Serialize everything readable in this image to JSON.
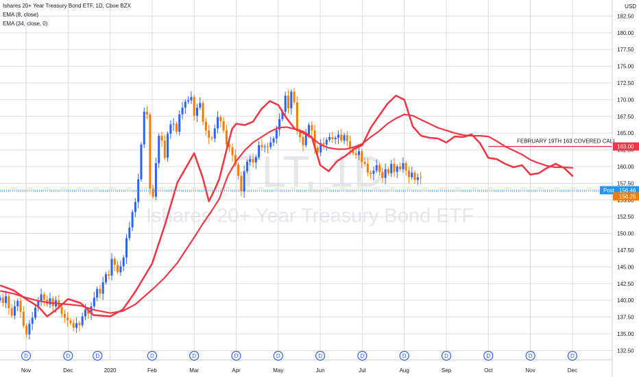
{
  "header": {
    "title": "Ishares 20+ Year Treasury Bond ETF, 1D, Cboe BZX",
    "ema_fast_label": "EMA (8, close)",
    "ema_slow_label": "EMA (34, close, 0)"
  },
  "watermark": {
    "symbol": "TLT, 1D",
    "name": "Ishares 20+ Year Treasury Bond ETF"
  },
  "colors": {
    "up": "#2962ff",
    "down": "#f57c00",
    "ema": "#f23645",
    "grid": "#d9dbe2",
    "post_tag": "#2196f3"
  },
  "chart_data": {
    "type": "candlestick",
    "title": "Ishares 20+ Year Treasury Bond ETF, 1D, Cboe BZX",
    "currency": "USD",
    "y_ticks": [
      132.5,
      135,
      137.5,
      140,
      142.5,
      145,
      147.5,
      150,
      152.5,
      155,
      157.5,
      160,
      162.5,
      165,
      167.5,
      170,
      172.5,
      175,
      177.5,
      180,
      182.5
    ],
    "y_ticks_labels": [
      "132.50",
      "135.00",
      "137.50",
      "140.00",
      "142.50",
      "145.00",
      "147.50",
      "150.00",
      "152.50",
      "155.00",
      "157.50",
      "160.00",
      "162.50",
      "165.00",
      "167.50",
      "170.00",
      "172.50",
      "175.00",
      "177.50",
      "180.00",
      "182.50"
    ],
    "ylim": [
      131.1,
      184.9
    ],
    "x_labels": [
      "Nov",
      "Dec",
      "2020",
      "Feb",
      "Mar",
      "Apr",
      "May",
      "Jun",
      "Jul",
      "Aug",
      "Sep",
      "Oct",
      "Nov",
      "Dec"
    ],
    "x_label_month_index": [
      0,
      1,
      2,
      3,
      4,
      5,
      6,
      7,
      8,
      9,
      10,
      11,
      12,
      13
    ],
    "dividend_marker_label": "D",
    "dividend_month_index": [
      0,
      1,
      1.7,
      3,
      4,
      5,
      6,
      7,
      8,
      9,
      10,
      11,
      12,
      13
    ],
    "series": [
      {
        "name": "EMA (8, close)",
        "month_index": [
          -0.6,
          -0.3,
          0,
          0.3,
          0.5,
          0.7,
          1,
          1.3,
          1.6,
          2,
          2.3,
          2.6,
          3,
          3.3,
          3.6,
          4,
          4.2,
          4.35,
          4.5,
          4.6,
          4.75,
          4.9,
          5,
          5.2,
          5.4,
          5.6,
          5.8,
          6,
          6.2,
          6.4,
          6.6,
          6.8,
          7,
          7.2,
          7.4,
          7.6,
          7.8,
          8,
          8.2,
          8.4,
          8.6,
          8.8,
          9,
          9.2,
          9.4,
          9.6,
          9.8,
          10,
          10.2,
          10.4,
          10.6,
          10.8,
          11,
          11.2,
          11.4,
          11.6,
          11.8,
          12,
          12.2,
          12.4,
          12.6,
          12.8,
          13
        ],
        "values": [
          142.2,
          141.5,
          140.2,
          139,
          137.6,
          138.5,
          140.2,
          139.6,
          137.8,
          137.6,
          138.6,
          141.3,
          145.5,
          151.2,
          157.6,
          162.0,
          158.4,
          154.8,
          156.7,
          158.2,
          162.0,
          165.6,
          166.4,
          166.2,
          166.7,
          168.6,
          169.8,
          169.2,
          167.2,
          165.6,
          165.2,
          164.4,
          160.2,
          159.3,
          160.8,
          161.6,
          162.6,
          163.2,
          165.8,
          167.6,
          169.4,
          170.6,
          170.0,
          166.0,
          164.6,
          164.3,
          164.2,
          163.6,
          164.5,
          164.4,
          164.8,
          163.5,
          161.3,
          161.1,
          160.4,
          159.9,
          160.2,
          158.8,
          159.0,
          159.8,
          160.4,
          159.8,
          158.6
        ]
      },
      {
        "name": "EMA (34, close, 0)",
        "month_index": [
          -0.6,
          -0.3,
          0,
          0.3,
          0.6,
          1,
          1.3,
          1.6,
          2,
          2.3,
          2.6,
          3,
          3.3,
          3.6,
          4,
          4.2,
          4.4,
          4.6,
          4.8,
          5,
          5.2,
          5.4,
          5.6,
          5.8,
          6,
          6.2,
          6.4,
          6.6,
          6.8,
          7,
          7.2,
          7.4,
          7.6,
          7.8,
          8,
          8.2,
          8.4,
          8.6,
          8.8,
          9,
          9.2,
          9.4,
          9.6,
          9.8,
          10,
          10.2,
          10.4,
          10.6,
          10.8,
          11,
          11.2,
          11.4,
          11.6,
          11.8,
          12,
          12.2,
          12.4,
          12.6,
          12.8,
          13
        ],
        "values": [
          141.4,
          141.0,
          140.4,
          139.9,
          139.6,
          139.4,
          139.2,
          138.6,
          138.1,
          138.4,
          139.4,
          141.6,
          143.4,
          145.6,
          149.4,
          151.4,
          153.2,
          155.2,
          158.6,
          160.8,
          162.4,
          163.6,
          164.4,
          165.2,
          165.8,
          165.9,
          165.6,
          165.0,
          164.3,
          163.3,
          162.8,
          162.6,
          162.6,
          162.9,
          163.4,
          164.4,
          165.3,
          166.4,
          167.2,
          167.8,
          167.6,
          167.0,
          166.4,
          165.8,
          165.4,
          165.0,
          164.7,
          164.6,
          164.6,
          164.5,
          163.8,
          163.0,
          162.4,
          161.8,
          161.0,
          160.5,
          160.1,
          159.9,
          159.9,
          159.8
        ]
      }
    ],
    "horizontal_line": {
      "value": 163.0,
      "label": "FEBRUARY 19TH 163 COVERED CALL",
      "tag": "163.00",
      "start_month_index": 11.0
    },
    "price_tags": [
      {
        "label": "Post",
        "value_text": "156.46",
        "value": 156.46
      },
      {
        "label": "",
        "value_text": "156.25",
        "value": 156.25
      }
    ],
    "candles": {
      "month_index": [
        -0.62,
        -0.55,
        -0.48,
        -0.41,
        -0.34,
        -0.27,
        -0.2,
        -0.13,
        -0.06,
        0.01,
        0.08,
        0.15,
        0.22,
        0.29,
        0.36,
        0.43,
        0.5,
        0.57,
        0.64,
        0.71,
        0.78,
        0.85,
        0.92,
        0.99,
        1.06,
        1.13,
        1.2,
        1.27,
        1.34,
        1.41,
        1.48,
        1.55,
        1.62,
        1.69,
        1.76,
        1.83,
        1.9,
        1.97,
        2.04,
        2.11,
        2.18,
        2.25,
        2.32,
        2.39,
        2.46,
        2.53,
        2.6,
        2.67,
        2.74,
        2.81,
        2.88,
        2.95,
        3.02,
        3.09,
        3.16,
        3.23,
        3.3,
        3.37,
        3.44,
        3.51,
        3.58,
        3.65,
        3.72,
        3.79,
        3.86,
        3.93,
        4.0,
        4.07,
        4.14,
        4.21,
        4.28,
        4.35,
        4.42,
        4.49,
        4.56,
        4.63,
        4.7,
        4.77,
        4.84,
        4.91,
        4.98,
        5.05,
        5.12,
        5.19,
        5.26,
        5.33,
        5.4,
        5.47,
        5.54,
        5.61,
        5.68,
        5.75,
        5.82,
        5.89,
        5.96,
        6.03,
        6.1,
        6.17,
        6.24,
        6.31,
        6.38,
        6.45,
        6.52,
        6.59,
        6.66,
        6.73,
        6.8,
        6.87,
        6.94,
        7.01,
        7.08,
        7.15,
        7.22,
        7.29,
        7.36,
        7.43,
        7.5,
        7.57,
        7.64,
        7.71,
        7.78,
        7.85,
        7.92,
        7.99,
        8.06,
        8.13,
        8.2,
        8.27,
        8.34,
        8.41,
        8.48,
        8.55,
        8.62,
        8.69,
        8.76,
        8.83,
        8.9,
        8.97,
        9.04,
        9.11,
        9.18,
        9.25,
        9.32,
        9.39,
        9.46,
        9.53,
        9.6,
        9.67,
        9.74,
        9.81,
        9.88,
        9.95,
        10.02,
        10.09,
        10.16,
        10.23,
        10.3,
        10.37,
        10.44,
        10.51,
        10.58,
        10.65,
        10.72,
        10.79,
        10.86,
        10.93,
        11.0,
        11.07,
        11.14,
        11.21,
        11.28,
        11.35,
        11.42,
        11.49,
        11.56,
        11.63,
        11.7,
        11.77,
        11.84,
        11.91,
        11.98,
        12.05,
        12.12,
        12.19,
        12.26,
        12.33,
        12.4,
        12.47,
        12.54,
        12.61,
        12.68,
        12.75,
        12.82,
        12.89,
        12.96,
        13.03
      ],
      "close": [
        140.4,
        139.6,
        140.6,
        138.8,
        137.7,
        139.1,
        139.9,
        138.3,
        136.2,
        134.9,
        136.5,
        137.4,
        138.9,
        139.9,
        140.9,
        140.1,
        139.4,
        140.3,
        139.1,
        140.0,
        139.0,
        138.0,
        137.4,
        137.0,
        136.6,
        135.9,
        136.6,
        136.3,
        137.6,
        138.6,
        138.0,
        139.1,
        140.4,
        141.7,
        141.0,
        142.7,
        143.9,
        143.7,
        146.2,
        145.3,
        144.2,
        145.1,
        146.4,
        149.3,
        150.9,
        153.2,
        154.7,
        158.1,
        163.3,
        168.2,
        167.8,
        156.7,
        155.5,
        160.5,
        164.6,
        163.9,
        161.3,
        164.9,
        166.3,
        166.4,
        165.2,
        167.8,
        168.8,
        169.7,
        169.9,
        170.4,
        167.6,
        168.8,
        169.5,
        166.7,
        165.4,
        164.3,
        164.2,
        165.7,
        167.4,
        166.8,
        165.4,
        163.3,
        162.9,
        161.7,
        160.3,
        158.6,
        156.3,
        159.3,
        160.7,
        161.1,
        160.6,
        161.4,
        163.2,
        162.9,
        163.0,
        162.9,
        163.6,
        164.2,
        165.5,
        167.1,
        168.2,
        170.6,
        168.7,
        171.2,
        169.6,
        165.3,
        164.4,
        163.2,
        164.8,
        166.2,
        165.4,
        162.8,
        162.1,
        163.5,
        163.3,
        164.0,
        164.4,
        164.1,
        164.3,
        164.8,
        163.9,
        164.7,
        163.8,
        162.7,
        162.0,
        161.7,
        162.3,
        160.7,
        160.4,
        159.1,
        158.9,
        159.4,
        160.2,
        159.2,
        158.3,
        159.6,
        159.0,
        160.4,
        159.2,
        160.0,
        159.6,
        160.5,
        159.4,
        158.4,
        159.1,
        158.0,
        158.4,
        158.3
      ]
    }
  }
}
